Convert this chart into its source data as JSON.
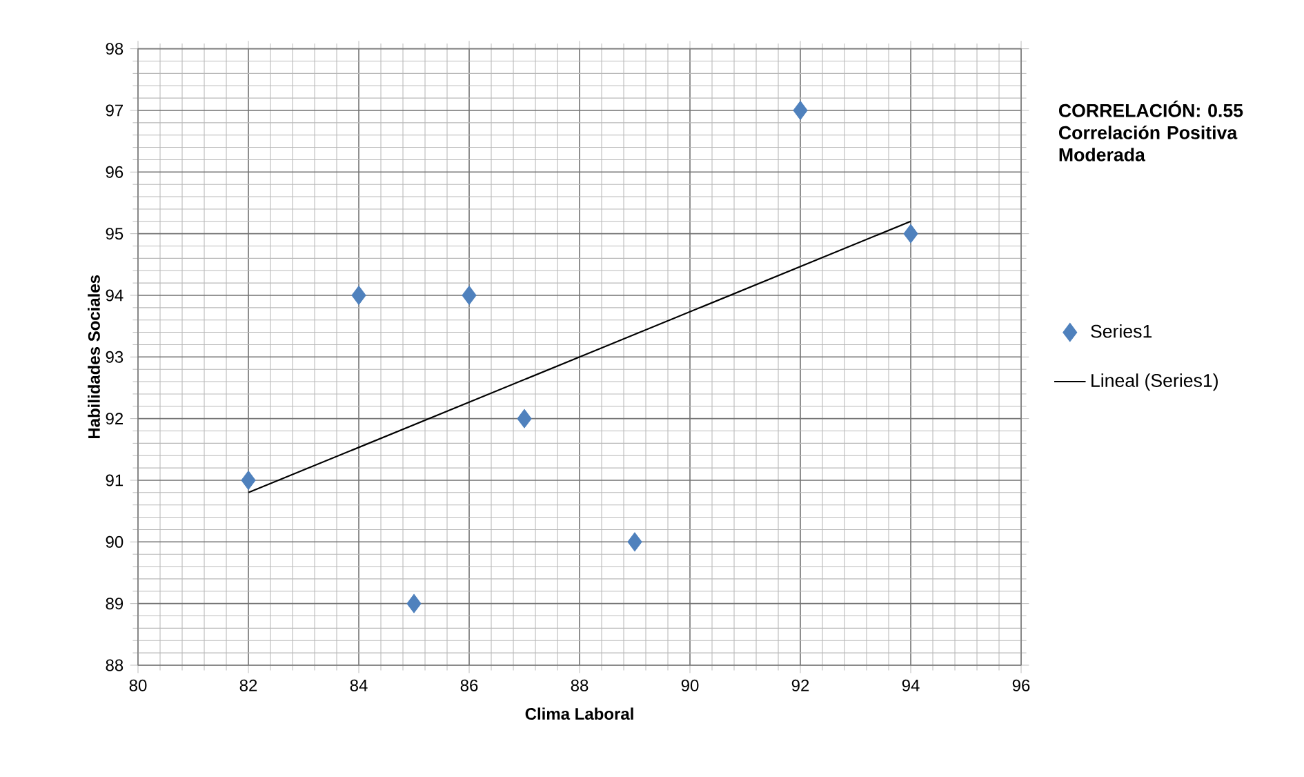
{
  "chart_data": {
    "type": "scatter",
    "xlabel": "Clima Laboral",
    "ylabel": "Habilidades Sociales",
    "xlim": [
      80,
      96
    ],
    "xticks": [
      80,
      82,
      84,
      86,
      88,
      90,
      92,
      94,
      96
    ],
    "ylim": [
      88,
      98
    ],
    "yticks": [
      88,
      89,
      90,
      91,
      92,
      93,
      94,
      95,
      96,
      97,
      98
    ],
    "grid": true,
    "legend": "right",
    "marker": "diamond",
    "annotations": [
      "CORRELACIÓN: 0.55",
      "Correlación Positiva Moderada"
    ],
    "series": [
      {
        "name": "Series1",
        "color": "#4f81bd",
        "x": [
          82,
          84,
          85,
          86,
          87,
          89,
          92,
          94
        ],
        "values": [
          91,
          94,
          89,
          94,
          92,
          90,
          97,
          95
        ]
      },
      {
        "name": "Lineal (Series1)",
        "type": "line",
        "color": "#000000",
        "marker": "none",
        "line_style": "solid",
        "x": [
          82,
          94
        ],
        "values": [
          90.8,
          95.2
        ]
      }
    ]
  }
}
